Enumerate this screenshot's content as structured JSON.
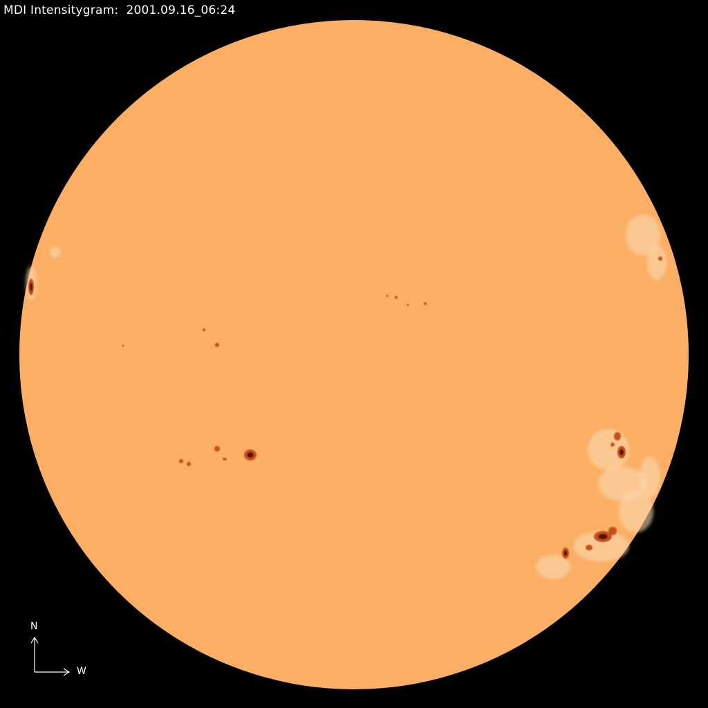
{
  "title": "MDI Intensitygram:  2001.09.16_06:24",
  "compass": {
    "north": "N",
    "west": "W"
  },
  "colors": {
    "background": "#000000",
    "photosphere": "#fbaa5c",
    "facula": "#fcd9b0",
    "penumbra": "#c4501c",
    "umbra": "#5a0c04"
  }
}
